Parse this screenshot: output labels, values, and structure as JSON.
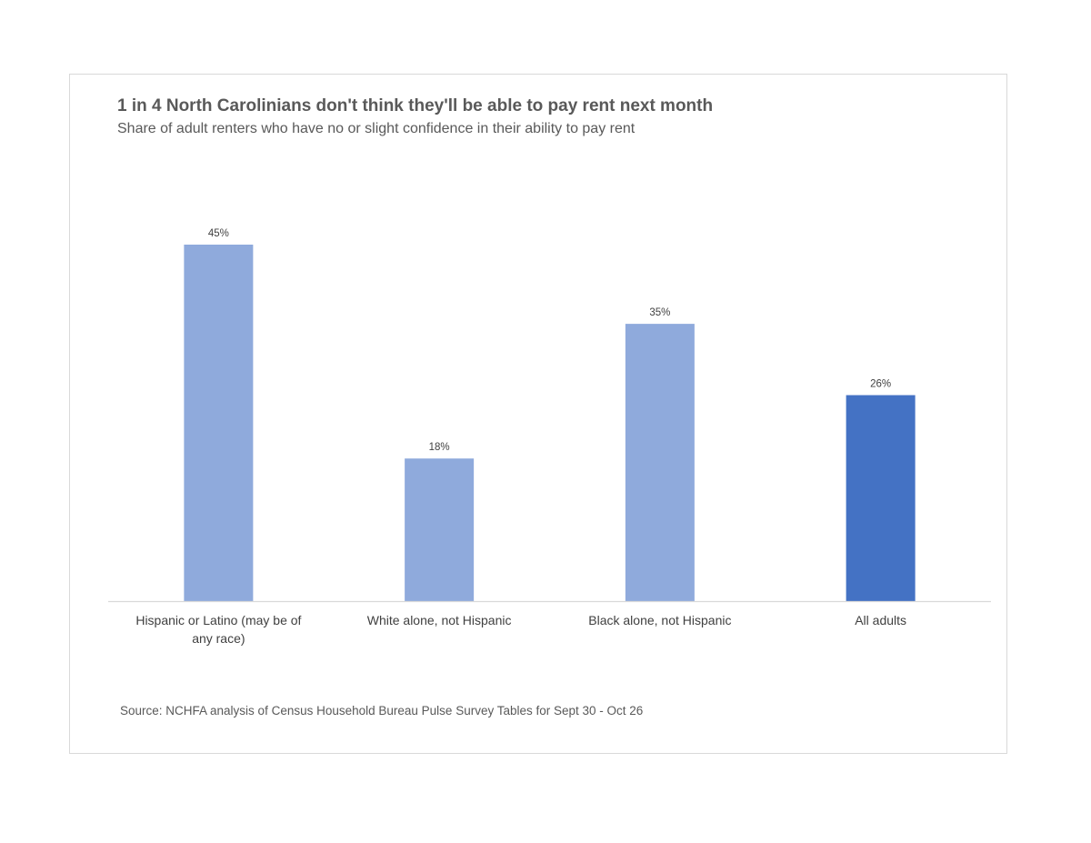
{
  "chart_data": {
    "type": "bar",
    "title": "1 in 4 North Carolinians don't think they'll be able to pay rent next month",
    "subtitle": "Share of adult renters who have no or slight confidence in their ability to pay rent",
    "categories": [
      "Hispanic or Latino (may be of any race)",
      "White alone, not Hispanic",
      "Black alone, not Hispanic",
      "All adults"
    ],
    "values": [
      45,
      18,
      35,
      26
    ],
    "data_labels": [
      "45%",
      "18%",
      "35%",
      "26%"
    ],
    "bar_colors": [
      "#8faadc",
      "#8faadc",
      "#8faadc",
      "#4472c4"
    ],
    "ylim": [
      0,
      45
    ],
    "grid": false,
    "legend": "none",
    "source": "Source: NCHFA analysis of Census Household Bureau Pulse Survey Tables for Sept 30 - Oct 26"
  }
}
